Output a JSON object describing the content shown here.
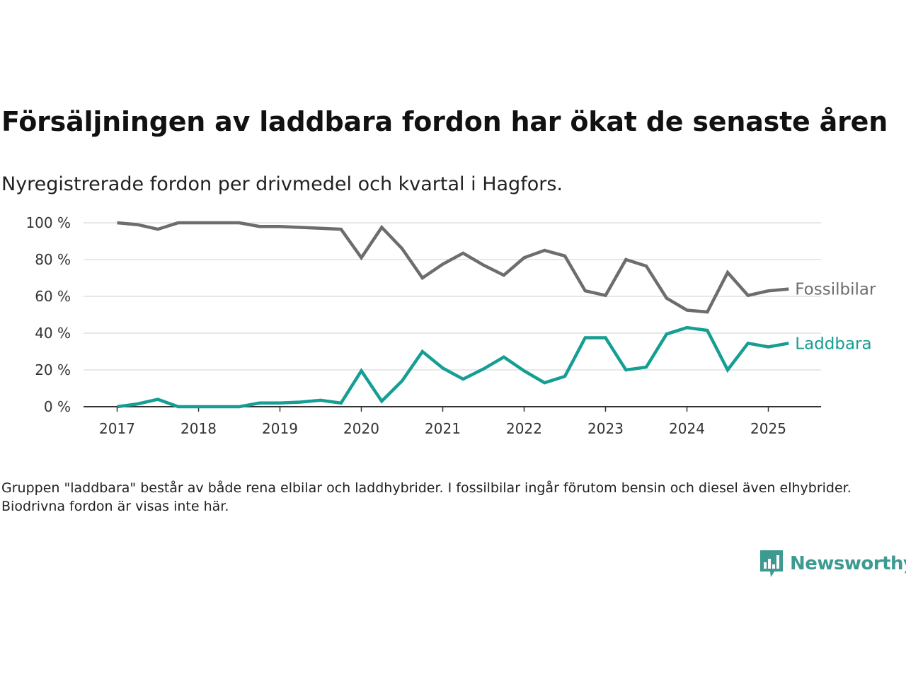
{
  "title": "Försäljningen av laddbara fordon har ökat de senaste åren",
  "subtitle": "Nyregistrerade fordon per drivmedel och kvartal i Hagfors.",
  "footnote": "Gruppen \"laddbara\" består av både rena elbilar och laddhybrider. I fossilbilar ingår förutom bensin och diesel även elhybrider. Biodrivna fordon är visas inte här.",
  "brand": "Newsworthy",
  "colors": {
    "fossil": "#6d6d70",
    "laddbara": "#159e93",
    "grid": "#d9d9d9",
    "axis": "#333333",
    "brand": "#3c9a90"
  },
  "chart_data": {
    "type": "line",
    "x_unit": "quarter",
    "x_start": "2017 Q1",
    "xticks": [
      "2017",
      "2018",
      "2019",
      "2020",
      "2021",
      "2022",
      "2023",
      "2024",
      "2025"
    ],
    "yticks": [
      "0 %",
      "20 %",
      "40 %",
      "60 %",
      "80 %",
      "100 %"
    ],
    "ylim": [
      0,
      100
    ],
    "grid": "horizontal",
    "legend": "inline-right",
    "series": [
      {
        "name": "Fossilbilar",
        "color": "#6d6d70",
        "values": [
          100,
          99,
          96.5,
          100,
          100,
          100,
          100,
          98,
          98,
          97.5,
          97,
          96.5,
          81,
          97.5,
          86,
          70,
          77.5,
          83.5,
          77,
          71.5,
          81,
          85,
          82,
          63,
          60.5,
          80,
          76.5,
          59,
          52.5,
          51.5,
          73,
          60.5,
          63,
          64
        ]
      },
      {
        "name": "Laddbara",
        "color": "#159e93",
        "values": [
          0,
          1.5,
          4,
          0,
          0,
          0,
          0,
          2,
          2,
          2.5,
          3.5,
          2,
          19.5,
          3,
          14,
          30,
          21,
          15,
          20.5,
          27,
          19.5,
          13,
          16.5,
          37.5,
          37.5,
          20,
          21.5,
          39.5,
          43,
          41.5,
          20,
          34.5,
          32.5,
          34.5
        ]
      }
    ]
  }
}
